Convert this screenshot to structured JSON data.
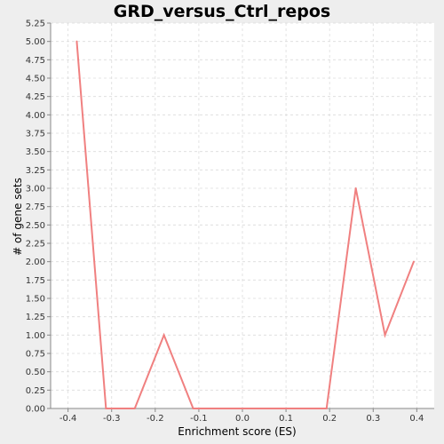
{
  "chart_data": {
    "type": "line",
    "title": "GRD_versus_Ctrl_repos",
    "xlabel": "Enrichment score (ES)",
    "ylabel": "# of gene sets",
    "xlim": [
      -0.44,
      0.44
    ],
    "ylim": [
      0,
      5.25
    ],
    "x_ticks": [
      -0.4,
      -0.3,
      -0.2,
      -0.1,
      0.0,
      0.1,
      0.2,
      0.3,
      0.4
    ],
    "x_tick_labels": [
      "-0.4",
      "-0.3",
      "-0.2",
      "-0.1",
      "0.0",
      "0.1",
      "0.2",
      "0.3",
      "0.4"
    ],
    "y_ticks": [
      0,
      0.25,
      0.5,
      0.75,
      1,
      1.25,
      1.5,
      1.75,
      2,
      2.25,
      2.5,
      2.75,
      3,
      3.25,
      3.5,
      3.75,
      4,
      4.25,
      4.5,
      4.75,
      5,
      5.25
    ],
    "y_tick_labels": [
      "0.00",
      "0.25",
      "0.50",
      "0.75",
      "1.00",
      "1.25",
      "1.50",
      "1.75",
      "2.00",
      "2.25",
      "2.50",
      "2.75",
      "3.00",
      "3.25",
      "3.50",
      "3.75",
      "4.00",
      "4.25",
      "4.50",
      "4.75",
      "5.00",
      "5.25"
    ],
    "grid": true,
    "series": [
      {
        "color": "#f08080",
        "x": [
          -0.38,
          -0.313,
          -0.247,
          -0.18,
          -0.113,
          -0.047,
          0.02,
          0.087,
          0.153,
          0.193,
          0.26,
          0.327,
          0.393
        ],
        "y": [
          5,
          0,
          0,
          1,
          0,
          0,
          0,
          0,
          0,
          0,
          3,
          1,
          2
        ]
      }
    ]
  }
}
